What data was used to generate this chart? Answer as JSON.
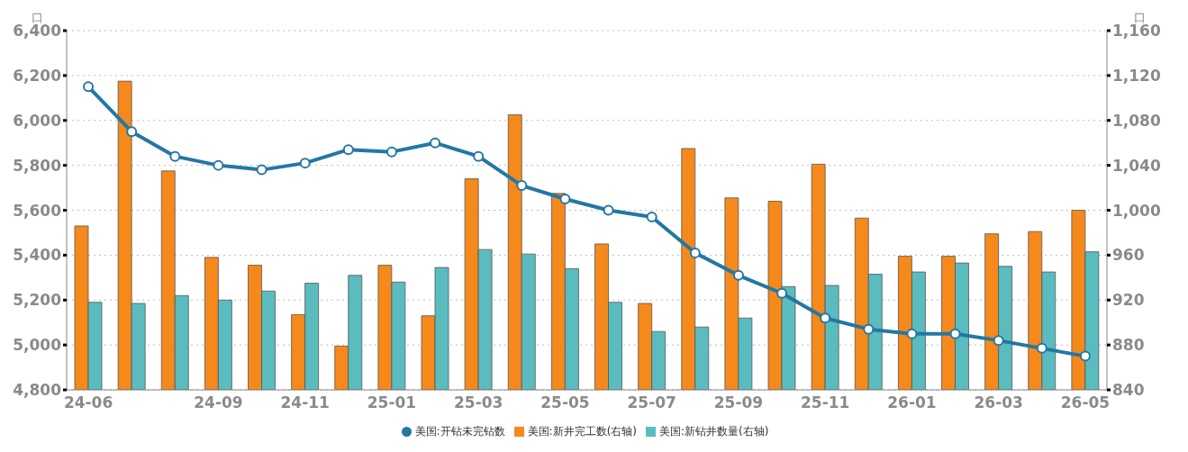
{
  "chart_data": {
    "type": "bar",
    "ylabel": "口",
    "y2label": "口",
    "categories": [
      "24-06",
      null,
      null,
      "24-09",
      null,
      "24-11",
      null,
      "25-01",
      null,
      "25-03",
      null,
      "25-05",
      null,
      "25-07",
      null,
      "25-09",
      null,
      "25-11",
      null,
      "26-01",
      null,
      "26-03",
      null,
      "26-05"
    ],
    "series": [
      {
        "name": "美国:开钻未完钻数",
        "type": "line",
        "color": "#2377a4",
        "values": [
          6150,
          5950,
          5840,
          5800,
          5780,
          5810,
          5870,
          5860,
          5900,
          5840,
          5710,
          5650,
          5600,
          5570,
          5410,
          5310,
          5230,
          5120,
          5070,
          5050,
          5050,
          5020,
          4985,
          4950
        ]
      },
      {
        "name": "美国:新井完工数(右轴)",
        "axis": "y2",
        "color": "#f5891c",
        "values": [
          986,
          1115,
          1035,
          958,
          951,
          907,
          879,
          951,
          906,
          1028,
          1085,
          1015,
          970,
          917,
          1055,
          1011,
          1008,
          1041,
          993,
          959,
          959,
          979,
          981,
          1000
        ]
      },
      {
        "name": "美国:新钻井数量(右轴)",
        "axis": "y2",
        "color": "#5bbcbf",
        "values": [
          918,
          917,
          924,
          920,
          928,
          935,
          942,
          936,
          949,
          965,
          961,
          948,
          918,
          892,
          896,
          904,
          932,
          933,
          943,
          945,
          953,
          950,
          945,
          963
        ]
      }
    ],
    "ylim": [
      4800,
      6400
    ],
    "yticks": [
      {
        "value": 4800,
        "label": "4,800"
      },
      {
        "value": 5000,
        "label": "5,000"
      },
      {
        "value": 5200,
        "label": "5,200"
      },
      {
        "value": 5400,
        "label": "5,400"
      },
      {
        "value": 5600,
        "label": "5,600"
      },
      {
        "value": 5800,
        "label": "5,800"
      },
      {
        "value": 6000,
        "label": "6,000"
      },
      {
        "value": 6200,
        "label": "6,200"
      },
      {
        "value": 6400,
        "label": "6,400"
      }
    ],
    "y2lim": [
      840,
      1160
    ],
    "y2ticks": [
      840,
      880,
      920,
      960,
      {
        "value": 1000,
        "label": "1,000"
      },
      {
        "value": 1040,
        "label": "1,040"
      },
      {
        "value": 1080,
        "label": "1,080"
      },
      {
        "value": 1120,
        "label": "1,120"
      },
      {
        "value": 1160,
        "label": "1,160"
      }
    ],
    "grid": "y",
    "legend": "bottom",
    "marker": "circle",
    "line_style": "solid"
  }
}
